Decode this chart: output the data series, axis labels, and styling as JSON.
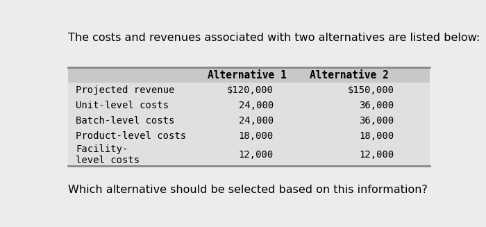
{
  "title_text": "The costs and revenues associated with two alternatives are listed below:",
  "footer_text": "Which alternative should be selected based on this information?",
  "header_row": [
    "",
    "Alternative 1",
    "Alternative 2"
  ],
  "rows": [
    [
      "Projected revenue",
      "$120,000",
      "$150,000"
    ],
    [
      "Unit-level costs",
      "24,000",
      "36,000"
    ],
    [
      "Batch-level costs",
      "24,000",
      "36,000"
    ],
    [
      "Product-level costs",
      "18,000",
      "18,000"
    ],
    [
      "Facility-\nlevel costs",
      "12,000",
      "12,000"
    ]
  ],
  "table_bg": "#e0e0e0",
  "header_bg": "#c8c8c8",
  "page_bg": "#ececec",
  "border_color": "#888888"
}
